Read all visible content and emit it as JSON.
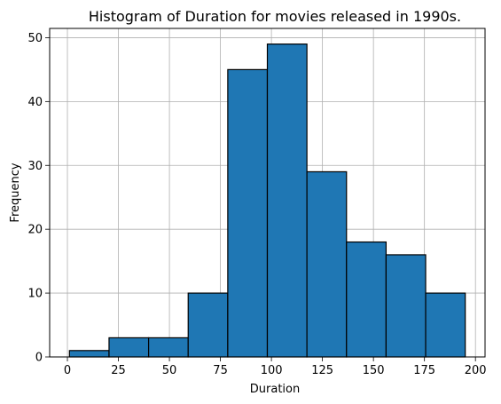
{
  "chart_data": {
    "type": "bar",
    "title": "Histogram of Duration for movies released in 1990s.",
    "xlabel": "Duration",
    "ylabel": "Frequency",
    "bins": [
      {
        "start": 1,
        "end": 20.4,
        "value": 1
      },
      {
        "start": 20.4,
        "end": 39.8,
        "value": 3
      },
      {
        "start": 39.8,
        "end": 59.2,
        "value": 3
      },
      {
        "start": 59.2,
        "end": 78.6,
        "value": 10
      },
      {
        "start": 78.6,
        "end": 98.0,
        "value": 45
      },
      {
        "start": 98.0,
        "end": 117.4,
        "value": 49
      },
      {
        "start": 117.4,
        "end": 136.8,
        "value": 29
      },
      {
        "start": 136.8,
        "end": 156.2,
        "value": 18
      },
      {
        "start": 156.2,
        "end": 175.6,
        "value": 16
      },
      {
        "start": 175.6,
        "end": 195,
        "value": 10
      }
    ],
    "xlim": [
      -8.7,
      204.7
    ],
    "ylim": [
      0,
      51.45
    ],
    "x_ticks": [
      "0",
      "25",
      "50",
      "75",
      "100",
      "125",
      "150",
      "175",
      "200"
    ],
    "y_ticks": [
      "0",
      "10",
      "20",
      "30",
      "40",
      "50"
    ],
    "grid": true,
    "bar_color": "#1f77b4",
    "edge_color": "#000000"
  }
}
